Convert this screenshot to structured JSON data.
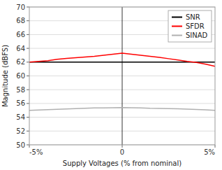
{
  "chart_data": {
    "type": "line",
    "xlabel": "Supply Voltages (% from nominal)",
    "ylabel": "Magnitude (dBFS)",
    "x": [
      -5,
      -4.5,
      -4,
      -3.5,
      -3,
      -2.5,
      -2,
      -1.5,
      -1,
      -0.5,
      0,
      0.5,
      1,
      1.5,
      2,
      2.5,
      3,
      3.5,
      4,
      4.5,
      5
    ],
    "series": [
      {
        "name": "SNR",
        "color": "#000000",
        "values": [
          62.0,
          62.0,
          62.0,
          62.0,
          62.0,
          62.0,
          62.0,
          62.0,
          62.0,
          62.0,
          62.0,
          62.0,
          62.0,
          62.0,
          62.0,
          62.0,
          62.0,
          62.0,
          62.0,
          62.0,
          62.0
        ]
      },
      {
        "name": "SFDR",
        "color": "#ff0000",
        "values": [
          62.0,
          62.1,
          62.2,
          62.4,
          62.55,
          62.65,
          62.75,
          62.85,
          63.0,
          63.15,
          63.3,
          63.15,
          63.0,
          62.85,
          62.7,
          62.5,
          62.3,
          62.1,
          61.95,
          61.7,
          61.4
        ]
      },
      {
        "name": "SINAD",
        "color": "#b0b0b0",
        "values": [
          55.0,
          55.05,
          55.1,
          55.15,
          55.2,
          55.25,
          55.3,
          55.35,
          55.35,
          55.38,
          55.4,
          55.38,
          55.35,
          55.3,
          55.28,
          55.25,
          55.22,
          55.18,
          55.12,
          55.08,
          55.0
        ]
      }
    ],
    "xlim": [
      -5,
      5
    ],
    "xticks": [
      {
        "value": -5,
        "label": "-5%"
      },
      0,
      {
        "value": 5,
        "label": "5%"
      }
    ],
    "ylim": [
      50,
      70
    ],
    "yticks": [
      50,
      52,
      54,
      56,
      58,
      60,
      62,
      64,
      66,
      68,
      70
    ],
    "vlines": [
      0
    ],
    "grid": "y",
    "legend": "upper right"
  }
}
